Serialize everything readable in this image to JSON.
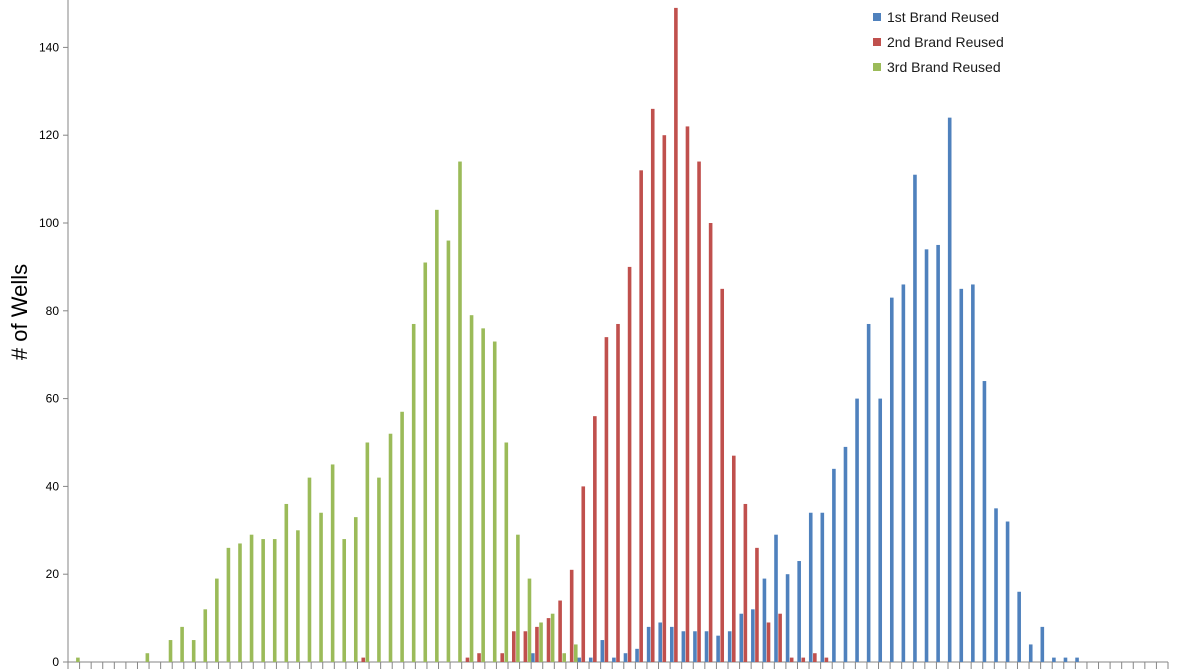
{
  "chart_data": {
    "type": "bar",
    "ylabel": "# of Wells",
    "xlabel": "",
    "ylim": [
      0,
      150
    ],
    "yticks": [
      0,
      20,
      40,
      60,
      80,
      100,
      120,
      140
    ],
    "grid": false,
    "legend_position": "top-right",
    "bins": 95,
    "series": [
      {
        "name": "1st Brand Reused",
        "color": "#4F81BD",
        "values": [
          0,
          0,
          0,
          0,
          0,
          0,
          0,
          0,
          0,
          0,
          0,
          0,
          0,
          0,
          0,
          0,
          0,
          0,
          0,
          0,
          0,
          0,
          0,
          0,
          0,
          0,
          0,
          0,
          0,
          0,
          0,
          0,
          0,
          0,
          0,
          0,
          0,
          0,
          0,
          0,
          2,
          0,
          0,
          0,
          1,
          1,
          5,
          1,
          2,
          3,
          8,
          9,
          8,
          7,
          7,
          7,
          6,
          7,
          11,
          12,
          19,
          29,
          20,
          23,
          34,
          34,
          44,
          49,
          60,
          77,
          60,
          83,
          86,
          111,
          94,
          95,
          124,
          85,
          86,
          64,
          35,
          32,
          16,
          4,
          8,
          1,
          1,
          1,
          0,
          0,
          0,
          0,
          0,
          0,
          0
        ]
      },
      {
        "name": "2nd Brand Reused",
        "color": "#C0504D",
        "values": [
          0,
          0,
          0,
          0,
          0,
          0,
          0,
          0,
          0,
          0,
          0,
          0,
          0,
          0,
          0,
          0,
          0,
          0,
          0,
          0,
          0,
          0,
          0,
          0,
          0,
          1,
          0,
          0,
          0,
          0,
          0,
          0,
          0,
          0,
          1,
          2,
          0,
          2,
          7,
          7,
          8,
          10,
          14,
          21,
          40,
          56,
          74,
          77,
          90,
          112,
          126,
          120,
          149,
          122,
          114,
          100,
          85,
          47,
          36,
          26,
          9,
          11,
          1,
          1,
          2,
          1,
          0,
          0,
          0,
          0,
          0,
          0,
          0,
          0,
          0,
          0,
          0,
          0,
          0,
          0,
          0,
          0,
          0,
          0,
          0,
          0,
          0,
          0,
          0,
          0,
          0,
          0,
          0,
          0,
          0
        ]
      },
      {
        "name": "3rd Brand Reused",
        "color": "#9BBB59",
        "values": [
          1,
          0,
          0,
          0,
          0,
          0,
          2,
          0,
          5,
          8,
          5,
          12,
          19,
          26,
          27,
          29,
          28,
          28,
          36,
          30,
          42,
          34,
          45,
          28,
          33,
          50,
          42,
          52,
          57,
          77,
          91,
          103,
          96,
          114,
          79,
          76,
          73,
          50,
          29,
          19,
          9,
          11,
          2,
          4,
          0,
          0,
          0,
          0,
          0,
          0,
          0,
          0,
          0,
          0,
          0,
          0,
          0,
          0,
          0,
          0,
          0,
          0,
          0,
          0,
          0,
          0,
          0,
          0,
          0,
          0,
          0,
          0,
          0,
          0,
          0,
          0,
          0,
          0,
          0,
          0,
          0,
          0,
          0,
          0,
          0,
          0,
          0,
          0,
          0,
          0,
          0,
          0,
          0,
          0,
          0
        ]
      }
    ]
  }
}
